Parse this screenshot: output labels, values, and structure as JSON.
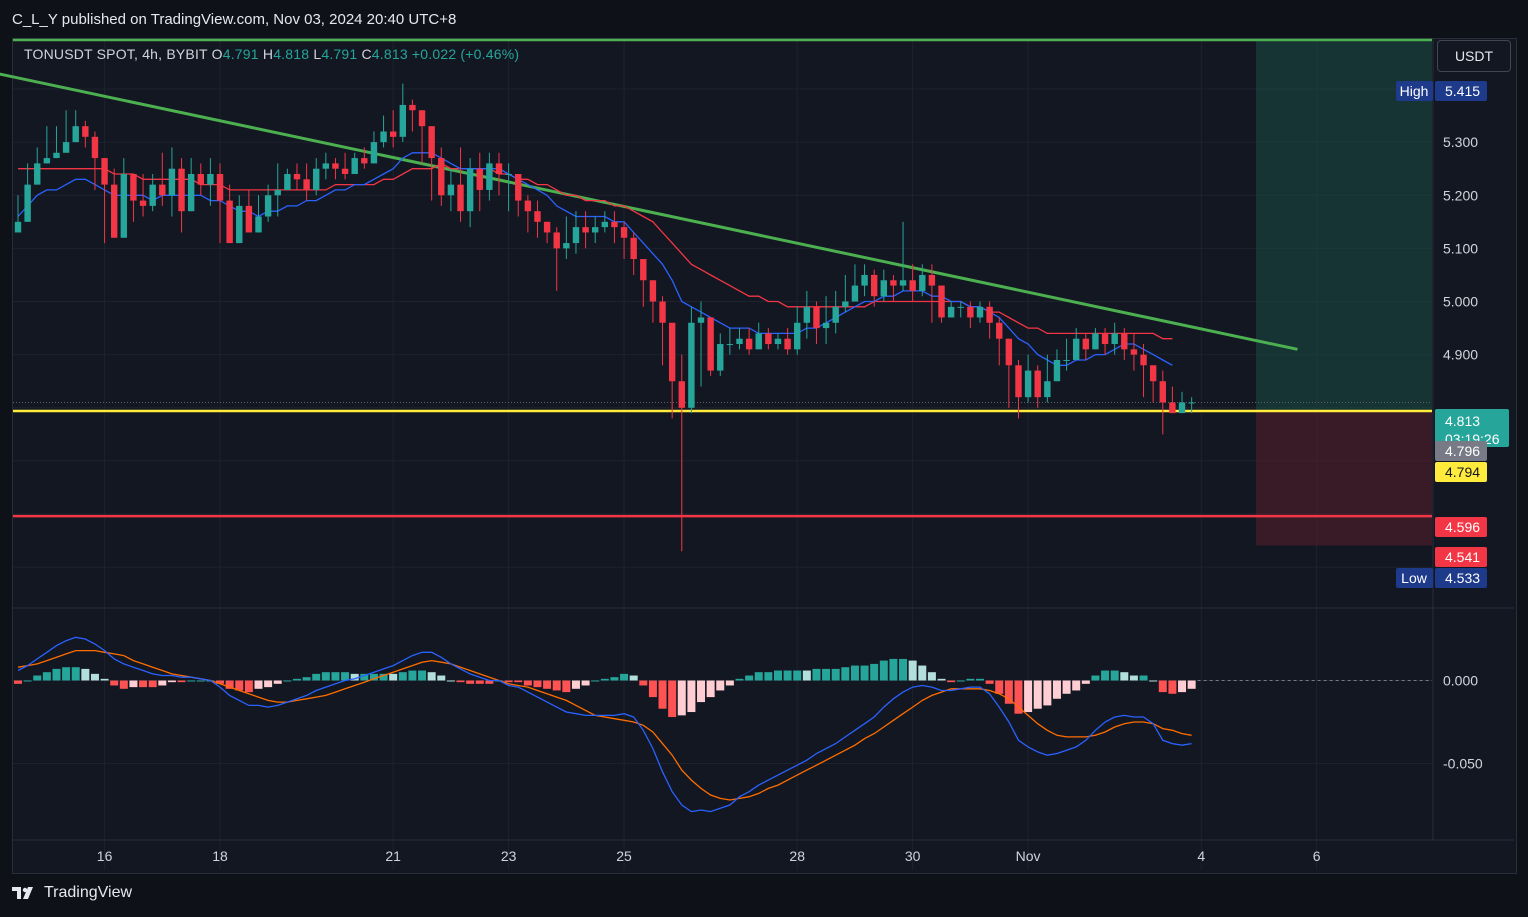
{
  "header": {
    "published_text": "C_L_Y published on TradingView.com, Nov 03, 2024 20:40 UTC+8"
  },
  "legend": {
    "symbol": "TONUSDT SPOT, 4h, BYBIT",
    "open_label": "O",
    "open": "4.791",
    "high_label": "H",
    "high": "4.818",
    "low_label": "L",
    "low": "4.791",
    "close_label": "C",
    "close": "4.813",
    "change": "+0.022 (+0.46%)"
  },
  "currency_button": "USDT",
  "footer": {
    "brand": "TradingView"
  },
  "colors": {
    "background": "#131722",
    "up": "#26a69a",
    "down": "#f23645",
    "ema_fast": "#2962ff",
    "ema_slow": "#f23645",
    "trendline": "#4caf50",
    "support": "#ffeb3b",
    "stop": "#f23645",
    "macd": "#2962ff",
    "signal": "#ff6d00"
  },
  "chart_data": {
    "type": "candlestick",
    "symbol": "TONUSDT",
    "timeframe": "4h",
    "ylim": [
      4.45,
      5.49
    ],
    "x_ticks": [
      {
        "label": "16",
        "index": 9
      },
      {
        "label": "18",
        "index": 21
      },
      {
        "label": "21",
        "index": 39
      },
      {
        "label": "23",
        "index": 51
      },
      {
        "label": "25",
        "index": 63
      },
      {
        "label": "28",
        "index": 81
      },
      {
        "label": "30",
        "index": 93
      },
      {
        "label": "Nov",
        "index": 105
      },
      {
        "label": "4",
        "index": 123
      },
      {
        "label": "6",
        "index": 135
      }
    ],
    "y_ticks": [
      "5.300",
      "5.200",
      "5.100",
      "5.000",
      "4.900"
    ],
    "closes": [
      5.15,
      5.22,
      5.26,
      5.27,
      5.28,
      5.3,
      5.33,
      5.31,
      5.27,
      5.22,
      5.12,
      5.24,
      5.19,
      5.18,
      5.22,
      5.2,
      5.25,
      5.17,
      5.24,
      5.22,
      5.24,
      5.19,
      5.11,
      5.18,
      5.13,
      5.16,
      5.2,
      5.21,
      5.24,
      5.23,
      5.21,
      5.25,
      5.26,
      5.25,
      5.24,
      5.27,
      5.26,
      5.3,
      5.32,
      5.31,
      5.37,
      5.36,
      5.33,
      5.27,
      5.2,
      5.22,
      5.17,
      5.25,
      5.21,
      5.26,
      5.24,
      5.24,
      5.19,
      5.17,
      5.15,
      5.13,
      5.1,
      5.11,
      5.14,
      5.13,
      5.14,
      5.15,
      5.14,
      5.12,
      5.08,
      5.04,
      5.0,
      4.96,
      4.85,
      4.8,
      4.96,
      4.97,
      4.87,
      4.92,
      4.92,
      4.93,
      4.91,
      4.94,
      4.92,
      4.93,
      4.91,
      4.96,
      4.99,
      4.95,
      4.96,
      4.99,
      5.0,
      5.03,
      5.05,
      5.01,
      5.04,
      5.03,
      5.04,
      5.02,
      5.05,
      5.03,
      4.97,
      4.99,
      4.99,
      4.97,
      4.99,
      4.96,
      4.93,
      4.88,
      4.82,
      4.87,
      4.82,
      4.85,
      4.89,
      4.89,
      4.93,
      4.91,
      4.94,
      4.92,
      4.94,
      4.91,
      4.9,
      4.88,
      4.85,
      4.81,
      4.79,
      4.81,
      4.81
    ],
    "highs": [
      5.2,
      5.26,
      5.29,
      5.33,
      5.33,
      5.36,
      5.36,
      5.34,
      5.32,
      5.27,
      5.25,
      5.27,
      5.24,
      5.24,
      5.24,
      5.28,
      5.29,
      5.27,
      5.27,
      5.26,
      5.27,
      5.26,
      5.22,
      5.2,
      5.21,
      5.2,
      5.22,
      5.26,
      5.25,
      5.26,
      5.26,
      5.27,
      5.28,
      5.27,
      5.28,
      5.28,
      5.29,
      5.32,
      5.35,
      5.36,
      5.41,
      5.38,
      5.35,
      5.33,
      5.29,
      5.25,
      5.29,
      5.27,
      5.28,
      5.28,
      5.28,
      5.26,
      5.24,
      5.2,
      5.19,
      5.15,
      5.14,
      5.16,
      5.17,
      5.17,
      5.16,
      5.17,
      5.17,
      5.15,
      5.13,
      5.06,
      5.04,
      5.01,
      4.88,
      4.9,
      4.99,
      5.0,
      4.97,
      4.94,
      4.95,
      4.95,
      4.95,
      4.96,
      4.95,
      4.94,
      4.95,
      4.99,
      5.02,
      5.0,
      5.01,
      5.02,
      5.05,
      5.07,
      5.07,
      5.06,
      5.06,
      5.05,
      5.15,
      5.07,
      5.07,
      5.07,
      5.01,
      5.0,
      5.0,
      5.0,
      5.0,
      5.0,
      4.97,
      4.92,
      4.89,
      4.9,
      4.88,
      4.9,
      4.91,
      4.93,
      4.95,
      4.94,
      4.95,
      4.95,
      4.96,
      4.95,
      4.94,
      4.92,
      4.88,
      4.87,
      4.84,
      4.83,
      4.82
    ],
    "lows": [
      5.15,
      5.15,
      5.24,
      5.26,
      5.27,
      5.29,
      5.3,
      5.29,
      5.21,
      5.11,
      5.12,
      5.13,
      5.15,
      5.16,
      5.17,
      5.18,
      5.16,
      5.13,
      5.19,
      5.2,
      5.18,
      5.11,
      5.11,
      5.11,
      5.13,
      5.13,
      5.15,
      5.16,
      5.21,
      5.21,
      5.19,
      5.2,
      5.23,
      5.23,
      5.23,
      5.24,
      5.25,
      5.26,
      5.29,
      5.29,
      5.3,
      5.32,
      5.26,
      5.19,
      5.18,
      5.17,
      5.15,
      5.14,
      5.17,
      5.19,
      5.2,
      5.17,
      5.16,
      5.13,
      5.12,
      5.11,
      5.02,
      5.08,
      5.09,
      5.1,
      5.11,
      5.13,
      5.11,
      5.08,
      5.05,
      4.99,
      4.96,
      4.88,
      4.78,
      4.53,
      4.79,
      4.84,
      4.86,
      4.86,
      4.9,
      4.91,
      4.9,
      4.91,
      4.91,
      4.91,
      4.9,
      4.9,
      4.93,
      4.92,
      4.92,
      4.94,
      4.98,
      5.0,
      5.01,
      4.99,
      5.0,
      5.0,
      5.02,
      5.0,
      5.01,
      4.96,
      4.96,
      4.97,
      4.97,
      4.95,
      4.96,
      4.93,
      4.88,
      4.8,
      4.78,
      4.81,
      4.8,
      4.81,
      4.85,
      4.87,
      4.9,
      4.89,
      4.91,
      4.9,
      4.9,
      4.89,
      4.87,
      4.82,
      4.81,
      4.75,
      4.79,
      4.79,
      4.79
    ],
    "ema_fast": [
      5.16,
      5.18,
      5.2,
      5.21,
      5.21,
      5.22,
      5.23,
      5.23,
      5.22,
      5.21,
      5.2,
      5.2,
      5.2,
      5.2,
      5.19,
      5.2,
      5.2,
      5.2,
      5.2,
      5.2,
      5.19,
      5.19,
      5.18,
      5.17,
      5.17,
      5.16,
      5.17,
      5.17,
      5.18,
      5.18,
      5.19,
      5.19,
      5.2,
      5.21,
      5.21,
      5.22,
      5.22,
      5.23,
      5.24,
      5.25,
      5.27,
      5.28,
      5.28,
      5.28,
      5.27,
      5.26,
      5.25,
      5.25,
      5.25,
      5.25,
      5.25,
      5.24,
      5.23,
      5.22,
      5.21,
      5.2,
      5.18,
      5.17,
      5.16,
      5.16,
      5.16,
      5.16,
      5.15,
      5.15,
      5.13,
      5.11,
      5.09,
      5.07,
      5.04,
      5.0,
      4.99,
      4.98,
      4.97,
      4.96,
      4.95,
      4.95,
      4.95,
      4.94,
      4.94,
      4.94,
      4.94,
      4.94,
      4.95,
      4.95,
      4.96,
      4.97,
      4.98,
      4.99,
      5.0,
      5.0,
      5.01,
      5.01,
      5.02,
      5.02,
      5.02,
      5.01,
      5.01,
      5.0,
      5.0,
      4.99,
      4.99,
      4.98,
      4.97,
      4.95,
      4.93,
      4.92,
      4.9,
      4.89,
      4.88,
      4.88,
      4.89,
      4.89,
      4.9,
      4.9,
      4.91,
      4.92,
      4.92,
      4.91,
      4.9,
      4.89,
      4.88
    ],
    "ema_slow": [
      5.25,
      5.25,
      5.25,
      5.25,
      5.25,
      5.25,
      5.25,
      5.25,
      5.25,
      5.25,
      5.24,
      5.24,
      5.24,
      5.23,
      5.23,
      5.23,
      5.23,
      5.23,
      5.23,
      5.22,
      5.22,
      5.22,
      5.21,
      5.21,
      5.21,
      5.21,
      5.21,
      5.21,
      5.21,
      5.21,
      5.21,
      5.21,
      5.21,
      5.22,
      5.22,
      5.22,
      5.22,
      5.22,
      5.23,
      5.23,
      5.24,
      5.25,
      5.25,
      5.25,
      5.26,
      5.25,
      5.25,
      5.25,
      5.25,
      5.25,
      5.24,
      5.24,
      5.23,
      5.23,
      5.22,
      5.22,
      5.21,
      5.2,
      5.2,
      5.19,
      5.19,
      5.19,
      5.18,
      5.18,
      5.17,
      5.16,
      5.15,
      5.13,
      5.11,
      5.09,
      5.07,
      5.06,
      5.05,
      5.04,
      5.03,
      5.02,
      5.01,
      5.01,
      5.0,
      5.0,
      4.99,
      4.99,
      4.99,
      4.99,
      4.99,
      4.99,
      4.99,
      4.99,
      4.99,
      5.0,
      5.0,
      5.0,
      5.0,
      5.0,
      5.0,
      5.0,
      5.0,
      5.0,
      5.0,
      4.99,
      4.99,
      4.98,
      4.98,
      4.97,
      4.96,
      4.95,
      4.95,
      4.94,
      4.94,
      4.94,
      4.94,
      4.94,
      4.94,
      4.94,
      4.94,
      4.94,
      4.94,
      4.94,
      4.94,
      4.93,
      4.93
    ],
    "trendline": {
      "from": [
        -18,
        5.49
      ],
      "to": [
        133,
        4.91
      ]
    },
    "support_level": 4.794,
    "stop_level": 4.596,
    "position": {
      "entry": 4.794,
      "target_top": 5.49,
      "stop_bottom": 4.541,
      "start_index": 129
    },
    "price_labels": [
      {
        "tag": "High",
        "value": "5.415",
        "bg": "#1e3a8a"
      },
      {
        "value": "4.813",
        "sub": "03:19:26",
        "bg": "#26a69a"
      },
      {
        "value": "4.796",
        "bg": "#787b86"
      },
      {
        "value": "4.794",
        "bg": "#ffeb3b",
        "fg": "#131722"
      },
      {
        "value": "4.596",
        "bg": "#f23645"
      },
      {
        "value": "4.541",
        "bg": "#f23645"
      },
      {
        "tag": "Low",
        "value": "4.533",
        "bg": "#1e3a8a"
      }
    ],
    "macd": {
      "ylim": [
        -0.085,
        0.03
      ],
      "y_ticks": [
        "0.000",
        "-0.050"
      ],
      "macd_line": [
        0.006,
        0.009,
        0.013,
        0.017,
        0.021,
        0.024,
        0.026,
        0.025,
        0.022,
        0.018,
        0.013,
        0.01,
        0.008,
        0.006,
        0.004,
        0.003,
        0.003,
        0.002,
        0.002,
        0.001,
        0.0,
        -0.004,
        -0.009,
        -0.012,
        -0.015,
        -0.015,
        -0.016,
        -0.015,
        -0.013,
        -0.011,
        -0.009,
        -0.006,
        -0.004,
        -0.002,
        0.0,
        0.001,
        0.003,
        0.005,
        0.007,
        0.009,
        0.012,
        0.015,
        0.017,
        0.017,
        0.014,
        0.01,
        0.007,
        0.004,
        0.002,
        0.0,
        0.0,
        -0.003,
        -0.004,
        -0.007,
        -0.01,
        -0.013,
        -0.016,
        -0.019,
        -0.02,
        -0.021,
        -0.021,
        -0.021,
        -0.021,
        -0.02,
        -0.022,
        -0.03,
        -0.041,
        -0.055,
        -0.067,
        -0.075,
        -0.079,
        -0.078,
        -0.079,
        -0.077,
        -0.075,
        -0.07,
        -0.067,
        -0.063,
        -0.06,
        -0.057,
        -0.054,
        -0.051,
        -0.048,
        -0.044,
        -0.041,
        -0.038,
        -0.034,
        -0.03,
        -0.026,
        -0.022,
        -0.016,
        -0.011,
        -0.007,
        -0.004,
        -0.003,
        -0.004,
        -0.006,
        -0.006,
        -0.005,
        -0.004,
        -0.004,
        -0.008,
        -0.016,
        -0.025,
        -0.036,
        -0.04,
        -0.043,
        -0.045,
        -0.044,
        -0.042,
        -0.04,
        -0.036,
        -0.03,
        -0.025,
        -0.022,
        -0.021,
        -0.022,
        -0.022,
        -0.026,
        -0.036,
        -0.038,
        -0.039,
        -0.038
      ],
      "signal_line": [
        0.008,
        0.009,
        0.01,
        0.012,
        0.014,
        0.016,
        0.018,
        0.018,
        0.018,
        0.017,
        0.016,
        0.015,
        0.012,
        0.01,
        0.008,
        0.006,
        0.004,
        0.003,
        0.002,
        0.001,
        0.0,
        -0.002,
        -0.004,
        -0.006,
        -0.008,
        -0.01,
        -0.012,
        -0.013,
        -0.013,
        -0.012,
        -0.011,
        -0.01,
        -0.009,
        -0.007,
        -0.005,
        -0.003,
        -0.001,
        0.001,
        0.003,
        0.005,
        0.007,
        0.009,
        0.011,
        0.012,
        0.011,
        0.01,
        0.008,
        0.006,
        0.004,
        0.002,
        0.0,
        -0.002,
        -0.003,
        -0.004,
        -0.006,
        -0.008,
        -0.01,
        -0.012,
        -0.015,
        -0.018,
        -0.021,
        -0.022,
        -0.023,
        -0.024,
        -0.025,
        -0.027,
        -0.031,
        -0.038,
        -0.045,
        -0.054,
        -0.06,
        -0.065,
        -0.069,
        -0.071,
        -0.072,
        -0.071,
        -0.07,
        -0.068,
        -0.065,
        -0.063,
        -0.06,
        -0.057,
        -0.054,
        -0.051,
        -0.048,
        -0.045,
        -0.042,
        -0.039,
        -0.035,
        -0.032,
        -0.028,
        -0.024,
        -0.02,
        -0.016,
        -0.012,
        -0.009,
        -0.007,
        -0.005,
        -0.005,
        -0.005,
        -0.005,
        -0.006,
        -0.008,
        -0.011,
        -0.016,
        -0.021,
        -0.026,
        -0.03,
        -0.033,
        -0.034,
        -0.034,
        -0.034,
        -0.033,
        -0.031,
        -0.028,
        -0.026,
        -0.025,
        -0.025,
        -0.026,
        -0.029,
        -0.03,
        -0.032,
        -0.033
      ]
    }
  }
}
